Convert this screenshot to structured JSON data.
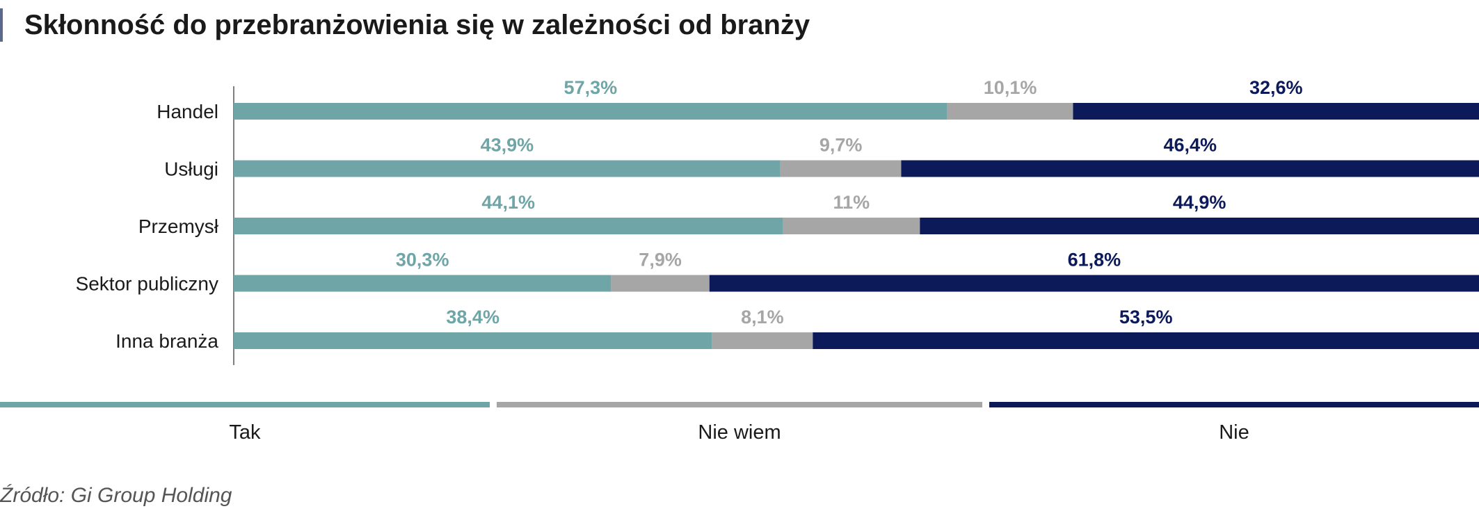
{
  "title": "Skłonność do przebranżowienia się w zależności od branży",
  "source": "Źródło: Gi Group Holding",
  "colors": {
    "tak": "#6fa5a6",
    "nie_wiem": "#a6a6a6",
    "nie": "#0c1a5a"
  },
  "legend": [
    {
      "label": "Tak",
      "color": "#6fa5a6"
    },
    {
      "label": "Nie wiem",
      "color": "#a6a6a6"
    },
    {
      "label": "Nie",
      "color": "#0c1a5a"
    }
  ],
  "chart_data": {
    "type": "bar",
    "orientation": "horizontal",
    "stacked": true,
    "categories": [
      "Handel",
      "Usługi",
      "Przemysł",
      "Sektor publiczny",
      "Inna branża"
    ],
    "series": [
      {
        "name": "Tak",
        "values": [
          57.3,
          43.9,
          44.1,
          30.3,
          38.4
        ],
        "labels": [
          "57,3%",
          "43,9%",
          "44,1%",
          "30,3%",
          "38,4%"
        ]
      },
      {
        "name": "Nie wiem",
        "values": [
          10.1,
          9.7,
          11,
          7.9,
          8.1
        ],
        "labels": [
          "10,1%",
          "9,7%",
          "11%",
          "7,9%",
          "8,1%"
        ]
      },
      {
        "name": "Nie",
        "values": [
          32.6,
          46.4,
          44.9,
          61.8,
          53.5
        ],
        "labels": [
          "32,6%",
          "46,4%",
          "44,9%",
          "61,8%",
          "53,5%"
        ]
      }
    ],
    "xlim": [
      0,
      100
    ],
    "legend_position": "bottom"
  }
}
